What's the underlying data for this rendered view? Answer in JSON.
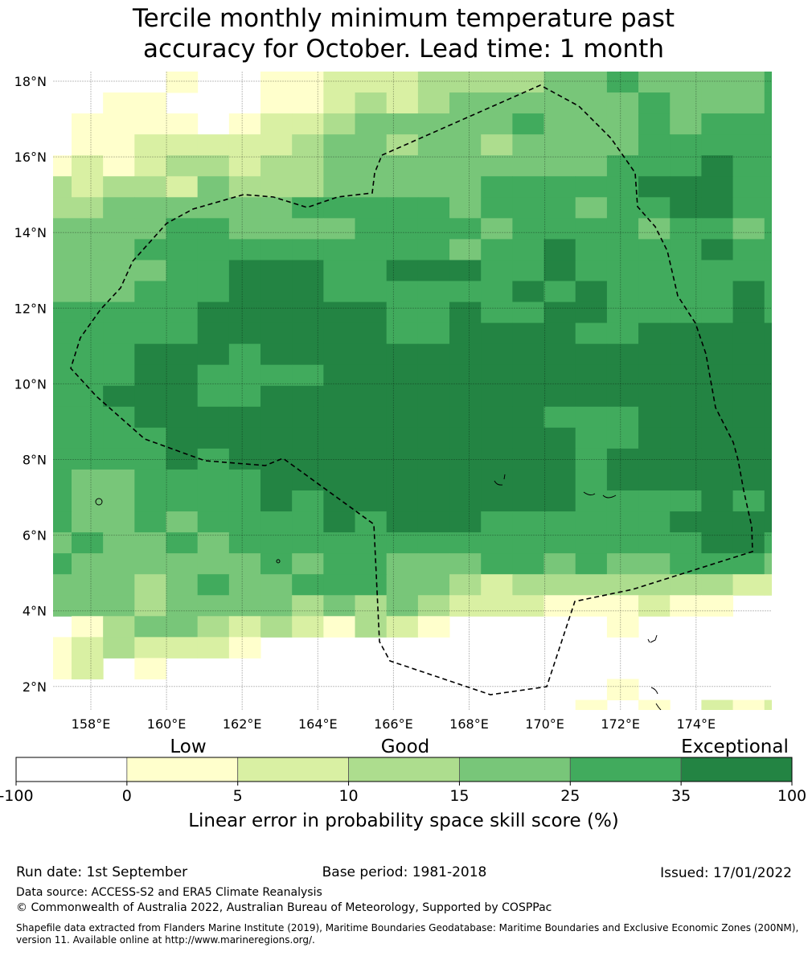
{
  "title_line1": "Tercile monthly minimum temperature past",
  "title_line2": "accuracy for October. Lead time: 1 month",
  "chart_data": {
    "type": "heatmap",
    "lat_ticks": [
      "18°N",
      "16°N",
      "14°N",
      "12°N",
      "10°N",
      "8°N",
      "6°N",
      "4°N",
      "2°N"
    ],
    "lon_ticks": [
      "158°E",
      "160°E",
      "162°E",
      "164°E",
      "166°E",
      "168°E",
      "170°E",
      "172°E",
      "174°E"
    ],
    "category_colors": [
      "#ffffff",
      "#ffffcc",
      "#d9f0a3",
      "#addd8e",
      "#78c679",
      "#41ab5d",
      "#238443"
    ],
    "grid_note": "rows north to south, columns west to east; each digit is colorbar category index 0-6",
    "grid": [
      "000010011222333344544445",
      "001100011232344444454445",
      "011110122344444544454555",
      "011222223443443444455555",
      "121233233444444444555655",
      "323324333444445555566655",
      "334444445555545554556655",
      "444455444455554555545545",
      "444555555555545565555655",
      "444455666556665565555555",
      "444555666555555656555565",
      "555556666665565566555565",
      "555556666665566665566666",
      "555666566666666666666666",
      "555665555666666666666666",
      "556665566666666666666666",
      "555666666666666655566666",
      "555566666666666665566666",
      "555565666666666665666666",
      "544555566666666665666666",
      "544555565666666665555656",
      "544545555656665555556666",
      "454454555555555555555665",
      "544444454554445545445554",
      "444345445554432333333322",
      "444344443434322211121100",
      "013443232132100000100000",
      "123222100000000000000000",
      "120100000000000000000000",
      "000000000000000000100000",
      "000000000000000001010212"
    ]
  },
  "colorbar": {
    "categories": [
      "Low",
      "Good",
      "Exceptional"
    ],
    "ticks": [
      "-100",
      "0",
      "5",
      "10",
      "15",
      "25",
      "35",
      "100"
    ],
    "label": "Linear error in probability space skill score (%)"
  },
  "footer": {
    "run_date": "Run date: 1st September",
    "base_period": "Base period: 1981-2018",
    "issued": "Issued: 17/01/2022",
    "data_source": "Data source: ACCESS-S2 and ERA5 Climate Reanalysis",
    "copyright": "© Commonwealth of Australia 2022, Australian Bureau of Meteorology, Supported by COSPPac",
    "shapefile_line1": "Shapefile data extracted from Flanders Marine Institute (2019), Maritime Boundaries Geodatabase: Maritime Boundaries and Exclusive Economic Zones (200NM),",
    "shapefile_line2": "version 11. Available online at http://www.marineregions.org/."
  }
}
